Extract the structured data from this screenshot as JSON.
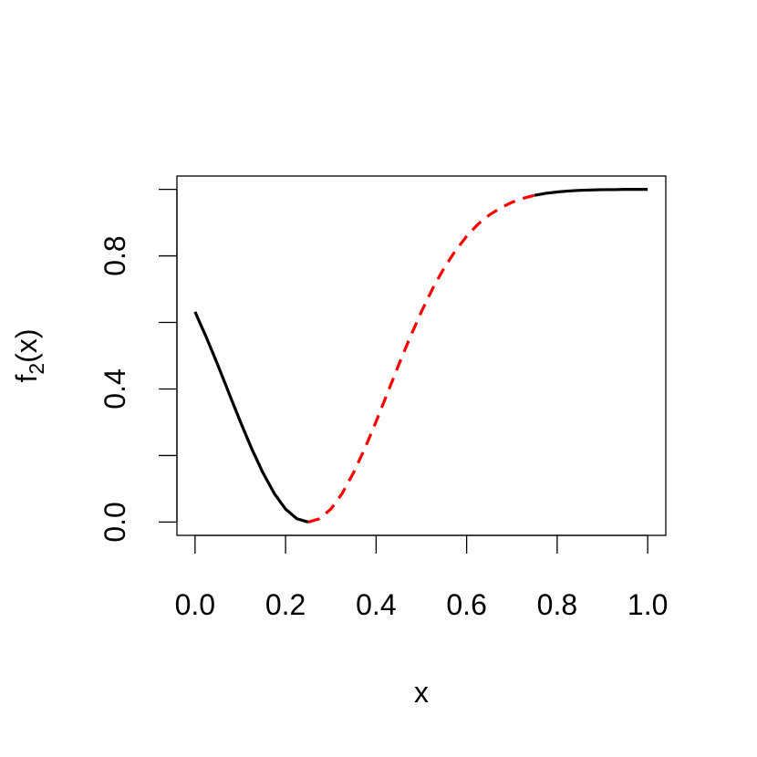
{
  "chart_data": {
    "type": "line",
    "xlabel": "x",
    "ylabel_parts": [
      "f",
      "2",
      "(x)"
    ],
    "x": [
      0,
      0.025,
      0.05,
      0.075,
      0.1,
      0.125,
      0.15,
      0.175,
      0.2,
      0.225,
      0.25,
      0.275,
      0.3,
      0.325,
      0.35,
      0.375,
      0.4,
      0.425,
      0.45,
      0.475,
      0.5,
      0.525,
      0.55,
      0.575,
      0.6,
      0.625,
      0.65,
      0.675,
      0.7,
      0.725,
      0.75,
      0.775,
      0.8,
      0.825,
      0.85,
      0.875,
      0.9,
      0.925,
      0.95,
      0.975,
      1
    ],
    "series": [
      {
        "color": "#000000",
        "dashed": false,
        "values": [
          0.632,
          0.555,
          0.473,
          0.387,
          0.302,
          0.221,
          0.148,
          0.086,
          0.039,
          0.01,
          0,
          null,
          null,
          null,
          null,
          null,
          null,
          null,
          null,
          null,
          null,
          null,
          null,
          null,
          null,
          null,
          null,
          null,
          null,
          null,
          0.982,
          0.988,
          0.992,
          0.995,
          0.997,
          0.998,
          0.999,
          0.999,
          1.0,
          1.0,
          1.0
        ]
      },
      {
        "color": "#ff0000",
        "dashed": true,
        "values": [
          null,
          null,
          null,
          null,
          null,
          null,
          null,
          null,
          null,
          null,
          0,
          0.01,
          0.039,
          0.086,
          0.148,
          0.221,
          0.302,
          0.387,
          0.473,
          0.555,
          0.632,
          0.702,
          0.763,
          0.815,
          0.859,
          0.895,
          0.923,
          0.944,
          0.961,
          0.973,
          0.982,
          null,
          null,
          null,
          null,
          null,
          null,
          null,
          null,
          null,
          null
        ]
      }
    ],
    "xlim": [
      -0.04,
      1.04
    ],
    "ylim": [
      -0.04,
      1.04
    ],
    "xticks": [
      {
        "value": 0,
        "label": "0.0"
      },
      {
        "value": 0.2,
        "label": "0.2"
      },
      {
        "value": 0.4,
        "label": "0.4"
      },
      {
        "value": 0.6,
        "label": "0.6"
      },
      {
        "value": 0.8,
        "label": "0.8"
      },
      {
        "value": 1,
        "label": "1.0"
      }
    ],
    "yticks": [
      {
        "value": 0,
        "label": "0.0"
      },
      {
        "value": 0.2,
        "label": null
      },
      {
        "value": 0.4,
        "label": "0.4"
      },
      {
        "value": 0.6,
        "label": null
      },
      {
        "value": 0.8,
        "label": "0.8"
      },
      {
        "value": 1,
        "label": null
      }
    ]
  }
}
